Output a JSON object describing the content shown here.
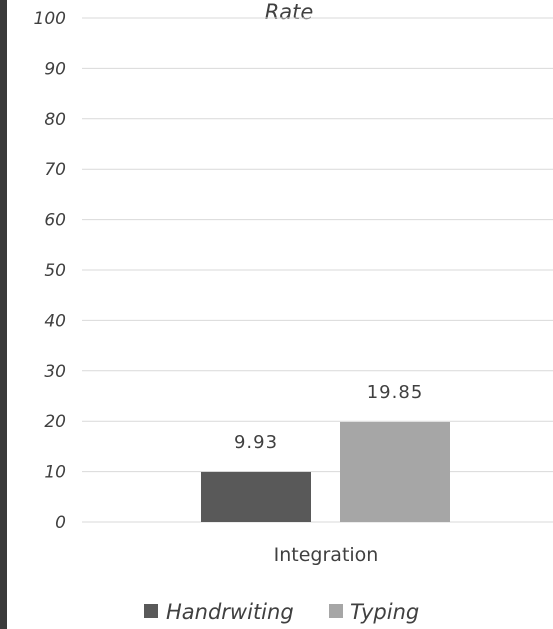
{
  "chart_data": {
    "type": "bar",
    "title": "Rate",
    "categories": [
      "Integration"
    ],
    "series": [
      {
        "name": "Handrwiting",
        "values": [
          9.93
        ],
        "color": "#595959"
      },
      {
        "name": "Typing",
        "values": [
          19.85
        ],
        "color": "#a6a6a6"
      }
    ],
    "ylim": [
      0,
      100
    ],
    "yticks": [
      "0",
      "10",
      "20",
      "30",
      "40",
      "50",
      "60",
      "70",
      "80",
      "90",
      "100"
    ],
    "data_labels": [
      "9.93",
      "19.85"
    ],
    "grid": true,
    "legend": "bottom"
  }
}
